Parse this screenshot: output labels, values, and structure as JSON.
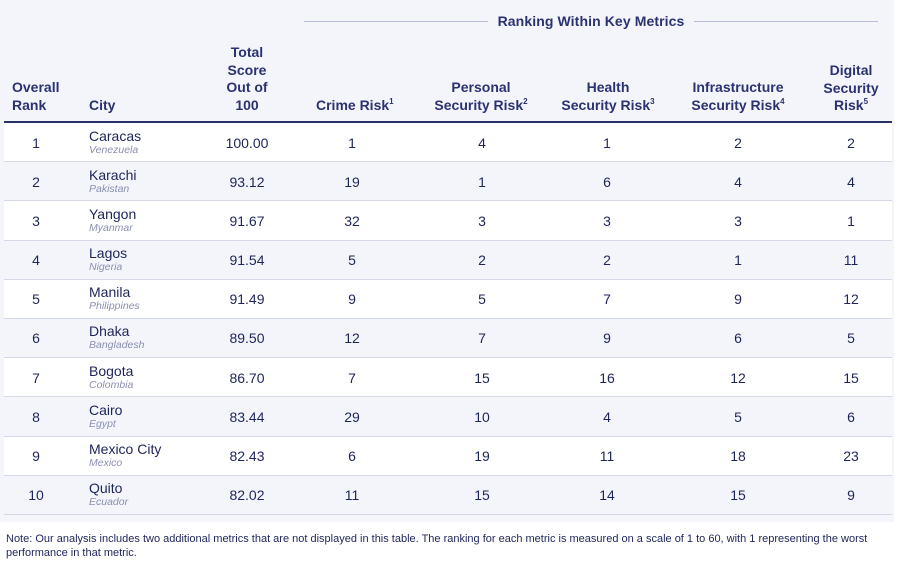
{
  "table": {
    "group_header": "Ranking Within Key Metrics",
    "columns": {
      "overall_rank": [
        "Overall",
        "Rank"
      ],
      "city": "City",
      "total_score": [
        "Total",
        "Score",
        "Out of",
        "100"
      ],
      "crime": {
        "text": "Crime Risk",
        "sup": "1"
      },
      "personal": {
        "line1": "Personal",
        "line2": "Security Risk",
        "sup": "2"
      },
      "health": {
        "line1": "Health",
        "line2": "Security Risk",
        "sup": "3"
      },
      "infra": {
        "line1": "Infrastructure",
        "line2": "Security Risk",
        "sup": "4"
      },
      "digital": {
        "line1": "Digital",
        "line2": "Security",
        "line3": "Risk",
        "sup": "5"
      }
    },
    "rows": [
      {
        "rank": "1",
        "city": "Caracas",
        "country": "Venezuela",
        "score": "100.00",
        "crime": "1",
        "personal": "4",
        "health": "1",
        "infra": "2",
        "digital": "2"
      },
      {
        "rank": "2",
        "city": "Karachi",
        "country": "Pakistan",
        "score": "93.12",
        "crime": "19",
        "personal": "1",
        "health": "6",
        "infra": "4",
        "digital": "4"
      },
      {
        "rank": "3",
        "city": "Yangon",
        "country": "Myanmar",
        "score": "91.67",
        "crime": "32",
        "personal": "3",
        "health": "3",
        "infra": "3",
        "digital": "1"
      },
      {
        "rank": "4",
        "city": "Lagos",
        "country": "Nigeria",
        "score": "91.54",
        "crime": "5",
        "personal": "2",
        "health": "2",
        "infra": "1",
        "digital": "11"
      },
      {
        "rank": "5",
        "city": "Manila",
        "country": "Philippines",
        "score": "91.49",
        "crime": "9",
        "personal": "5",
        "health": "7",
        "infra": "9",
        "digital": "12"
      },
      {
        "rank": "6",
        "city": "Dhaka",
        "country": "Bangladesh",
        "score": "89.50",
        "crime": "12",
        "personal": "7",
        "health": "9",
        "infra": "6",
        "digital": "5"
      },
      {
        "rank": "7",
        "city": "Bogota",
        "country": "Colombia",
        "score": "86.70",
        "crime": "7",
        "personal": "15",
        "health": "16",
        "infra": "12",
        "digital": "15"
      },
      {
        "rank": "8",
        "city": "Cairo",
        "country": "Egypt",
        "score": "83.44",
        "crime": "29",
        "personal": "10",
        "health": "4",
        "infra": "5",
        "digital": "6"
      },
      {
        "rank": "9",
        "city": "Mexico City",
        "country": "Mexico",
        "score": "82.43",
        "crime": "6",
        "personal": "19",
        "health": "11",
        "infra": "18",
        "digital": "23"
      },
      {
        "rank": "10",
        "city": "Quito",
        "country": "Ecuador",
        "score": "82.02",
        "crime": "11",
        "personal": "15",
        "health": "14",
        "infra": "15",
        "digital": "9"
      }
    ]
  },
  "note": "Note: Our analysis includes two additional metrics that are not displayed in this table. The ranking for each metric is measured on a scale of 1 to 60, with 1 representing the worst performance in that metric."
}
